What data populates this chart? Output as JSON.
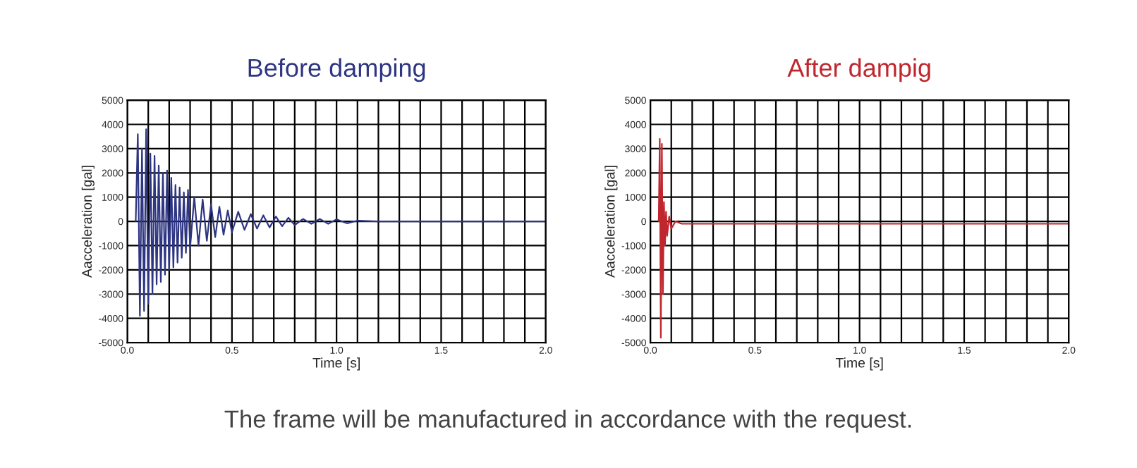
{
  "chart_data": [
    {
      "type": "line",
      "title": "Before damping",
      "xlabel": "Time [s]",
      "ylabel": "Aacceleration [gal]",
      "series": [
        {
          "color": "#2e3582",
          "x": [
            0.04,
            0.05,
            0.06,
            0.07,
            0.08,
            0.09,
            0.1,
            0.11,
            0.12,
            0.13,
            0.14,
            0.15,
            0.16,
            0.17,
            0.18,
            0.19,
            0.2,
            0.21,
            0.22,
            0.23,
            0.24,
            0.25,
            0.26,
            0.27,
            0.28,
            0.29,
            0.3,
            0.32,
            0.34,
            0.36,
            0.38,
            0.4,
            0.42,
            0.44,
            0.46,
            0.48,
            0.5,
            0.53,
            0.56,
            0.59,
            0.62,
            0.65,
            0.68,
            0.71,
            0.74,
            0.77,
            0.8,
            0.84,
            0.88,
            0.92,
            0.96,
            1.0,
            1.05,
            1.1,
            1.2,
            2.0
          ],
          "values": [
            0,
            3600,
            -3900,
            3000,
            -3700,
            3800,
            -3400,
            2800,
            -3000,
            2700,
            -2600,
            2300,
            -2500,
            2000,
            -2200,
            2100,
            -2000,
            1800,
            -1900,
            1500,
            -1700,
            1400,
            -1500,
            1200,
            -1300,
            1300,
            -1100,
            1000,
            -1000,
            900,
            -800,
            700,
            -650,
            600,
            -550,
            450,
            -450,
            400,
            -350,
            300,
            -300,
            250,
            -250,
            200,
            -200,
            150,
            -150,
            100,
            -100,
            100,
            -100,
            80,
            -80,
            30,
            0,
            0
          ]
        }
      ],
      "xlim": [
        0,
        2
      ],
      "ylim": [
        -5000,
        5000
      ],
      "xticks": [
        {
          "value": 0,
          "label": "0.0"
        },
        {
          "value": 0.1,
          "label": null
        },
        {
          "value": 0.2,
          "label": null
        },
        {
          "value": 0.3,
          "label": null
        },
        {
          "value": 0.4,
          "label": null
        },
        {
          "value": 0.5,
          "label": "0.5"
        },
        {
          "value": 0.6,
          "label": null
        },
        {
          "value": 0.7,
          "label": null
        },
        {
          "value": 0.8,
          "label": null
        },
        {
          "value": 0.9,
          "label": null
        },
        {
          "value": 1.0,
          "label": "1.0"
        },
        {
          "value": 1.1,
          "label": null
        },
        {
          "value": 1.2,
          "label": null
        },
        {
          "value": 1.3,
          "label": null
        },
        {
          "value": 1.4,
          "label": null
        },
        {
          "value": 1.5,
          "label": "1.5"
        },
        {
          "value": 1.6,
          "label": null
        },
        {
          "value": 1.7,
          "label": null
        },
        {
          "value": 1.8,
          "label": null
        },
        {
          "value": 1.9,
          "label": null
        },
        {
          "value": 2.0,
          "label": "2.0"
        }
      ],
      "yticks": [
        -5000,
        -4000,
        -3000,
        -2000,
        -1000,
        0,
        1000,
        2000,
        3000,
        4000,
        5000
      ],
      "grid": true,
      "annotations": [
        "The frame will be manufactured in accordance with the request."
      ]
    },
    {
      "type": "line",
      "title": "After dampig",
      "xlabel": "Time [s]",
      "ylabel": "Aacceleration [gal]",
      "series": [
        {
          "color": "#c0262d",
          "x": [
            0.04,
            0.045,
            0.05,
            0.055,
            0.06,
            0.065,
            0.07,
            0.075,
            0.08,
            0.09,
            0.1,
            0.12,
            0.15,
            0.2,
            2.0
          ],
          "values": [
            0,
            3400,
            -4800,
            3200,
            -3000,
            800,
            -1000,
            400,
            -600,
            200,
            -300,
            0,
            -100,
            -100,
            -100
          ]
        }
      ],
      "xlim": [
        0,
        2
      ],
      "ylim": [
        -5000,
        5000
      ],
      "xticks": [
        {
          "value": 0,
          "label": "0.0"
        },
        {
          "value": 0.1,
          "label": null
        },
        {
          "value": 0.2,
          "label": null
        },
        {
          "value": 0.3,
          "label": null
        },
        {
          "value": 0.4,
          "label": null
        },
        {
          "value": 0.5,
          "label": "0.5"
        },
        {
          "value": 0.6,
          "label": null
        },
        {
          "value": 0.7,
          "label": null
        },
        {
          "value": 0.8,
          "label": null
        },
        {
          "value": 0.9,
          "label": null
        },
        {
          "value": 1.0,
          "label": "1.0"
        },
        {
          "value": 1.1,
          "label": null
        },
        {
          "value": 1.2,
          "label": null
        },
        {
          "value": 1.3,
          "label": null
        },
        {
          "value": 1.4,
          "label": null
        },
        {
          "value": 1.5,
          "label": "1.5"
        },
        {
          "value": 1.6,
          "label": null
        },
        {
          "value": 1.7,
          "label": null
        },
        {
          "value": 1.8,
          "label": null
        },
        {
          "value": 1.9,
          "label": null
        },
        {
          "value": 2.0,
          "label": "2.0"
        }
      ],
      "yticks": [
        -5000,
        -4000,
        -3000,
        -2000,
        -1000,
        0,
        1000,
        2000,
        3000,
        4000,
        5000
      ],
      "grid": true
    }
  ]
}
